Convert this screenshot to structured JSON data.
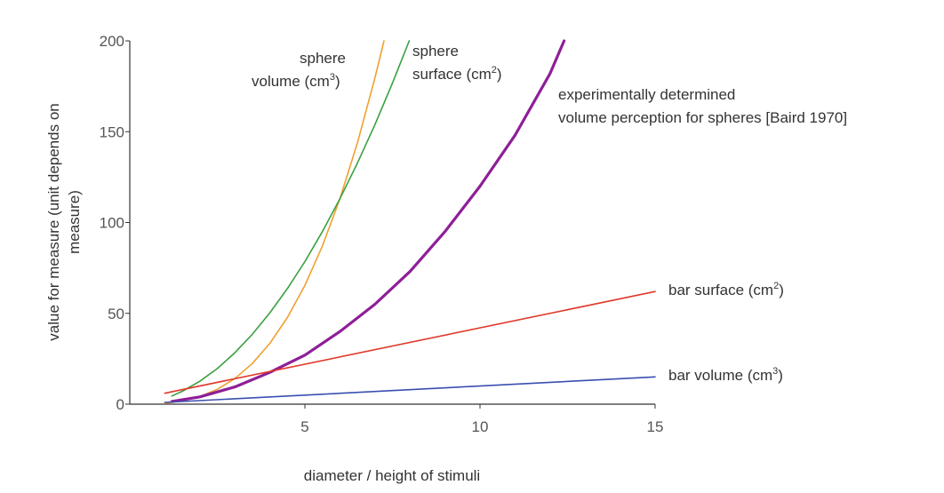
{
  "chart_data": {
    "type": "line",
    "title": "",
    "xlabel": "diameter / height of stimuli",
    "ylabel_line1": "value for measure (unit depends on",
    "ylabel_line2": "measure)",
    "xlim": [
      0,
      15
    ],
    "ylim": [
      0,
      200
    ],
    "xticks": [
      5,
      10,
      15
    ],
    "yticks": [
      0,
      50,
      100,
      150,
      200
    ],
    "grid": false,
    "colors": {
      "sphere_volume": "#f0a030",
      "sphere_surface": "#3aa040",
      "baird": "#8e1f98",
      "bar_surface": "#e03a2a",
      "bar_volume": "#3a4fb0"
    },
    "series": [
      {
        "name": "sphere volume (cm³)",
        "label_line1": "sphere",
        "label_line2": "volume (cm",
        "label_sup": "3",
        "label_end": ")",
        "color": "#f0a030",
        "x": [
          1,
          1.5,
          2,
          2.5,
          3,
          3.5,
          4,
          4.5,
          5,
          5.5,
          6,
          6.5,
          7,
          7.26
        ],
        "y": [
          0.5,
          1.8,
          4.2,
          8.2,
          14.1,
          22.4,
          33.5,
          47.7,
          65.4,
          87.1,
          113.1,
          143.8,
          179.6,
          200
        ]
      },
      {
        "name": "sphere surface (cm²)",
        "label_line1": "sphere",
        "label_line2": "surface (cm",
        "label_sup": "2",
        "label_end": ")",
        "color": "#3aa040",
        "x": [
          1.2,
          1.5,
          2,
          2.5,
          3,
          3.5,
          4,
          4.5,
          5,
          5.5,
          6,
          6.5,
          7,
          7.5,
          7.98
        ],
        "y": [
          4.5,
          7.1,
          12.6,
          19.6,
          28.3,
          38.5,
          50.3,
          63.6,
          78.5,
          95.0,
          113.1,
          132.7,
          153.9,
          176.7,
          200
        ]
      },
      {
        "name": "experimentally determined volume perception for spheres [Baird 1970]",
        "label_line1": "experimentally determined",
        "label_line2": "volume perception for spheres [Baird 1970]",
        "color": "#8e1f98",
        "x": [
          1.2,
          2,
          3,
          4,
          5,
          6,
          7,
          8,
          9,
          10,
          11,
          12,
          12.4
        ],
        "y": [
          1.5,
          4,
          9.5,
          17.5,
          27,
          40,
          55,
          73,
          95,
          120,
          148,
          182,
          200
        ]
      },
      {
        "name": "bar surface (cm²)",
        "label_line1": "bar surface (cm",
        "label_sup": "2",
        "label_end": ")",
        "color": "#e03a2a",
        "x": [
          1,
          15
        ],
        "y": [
          6,
          62
        ]
      },
      {
        "name": "bar volume (cm³)",
        "label_line1": "bar volume (cm",
        "label_sup": "3",
        "label_end": ")",
        "color": "#3a4fb0",
        "x": [
          1,
          15
        ],
        "y": [
          1,
          15
        ]
      }
    ]
  }
}
